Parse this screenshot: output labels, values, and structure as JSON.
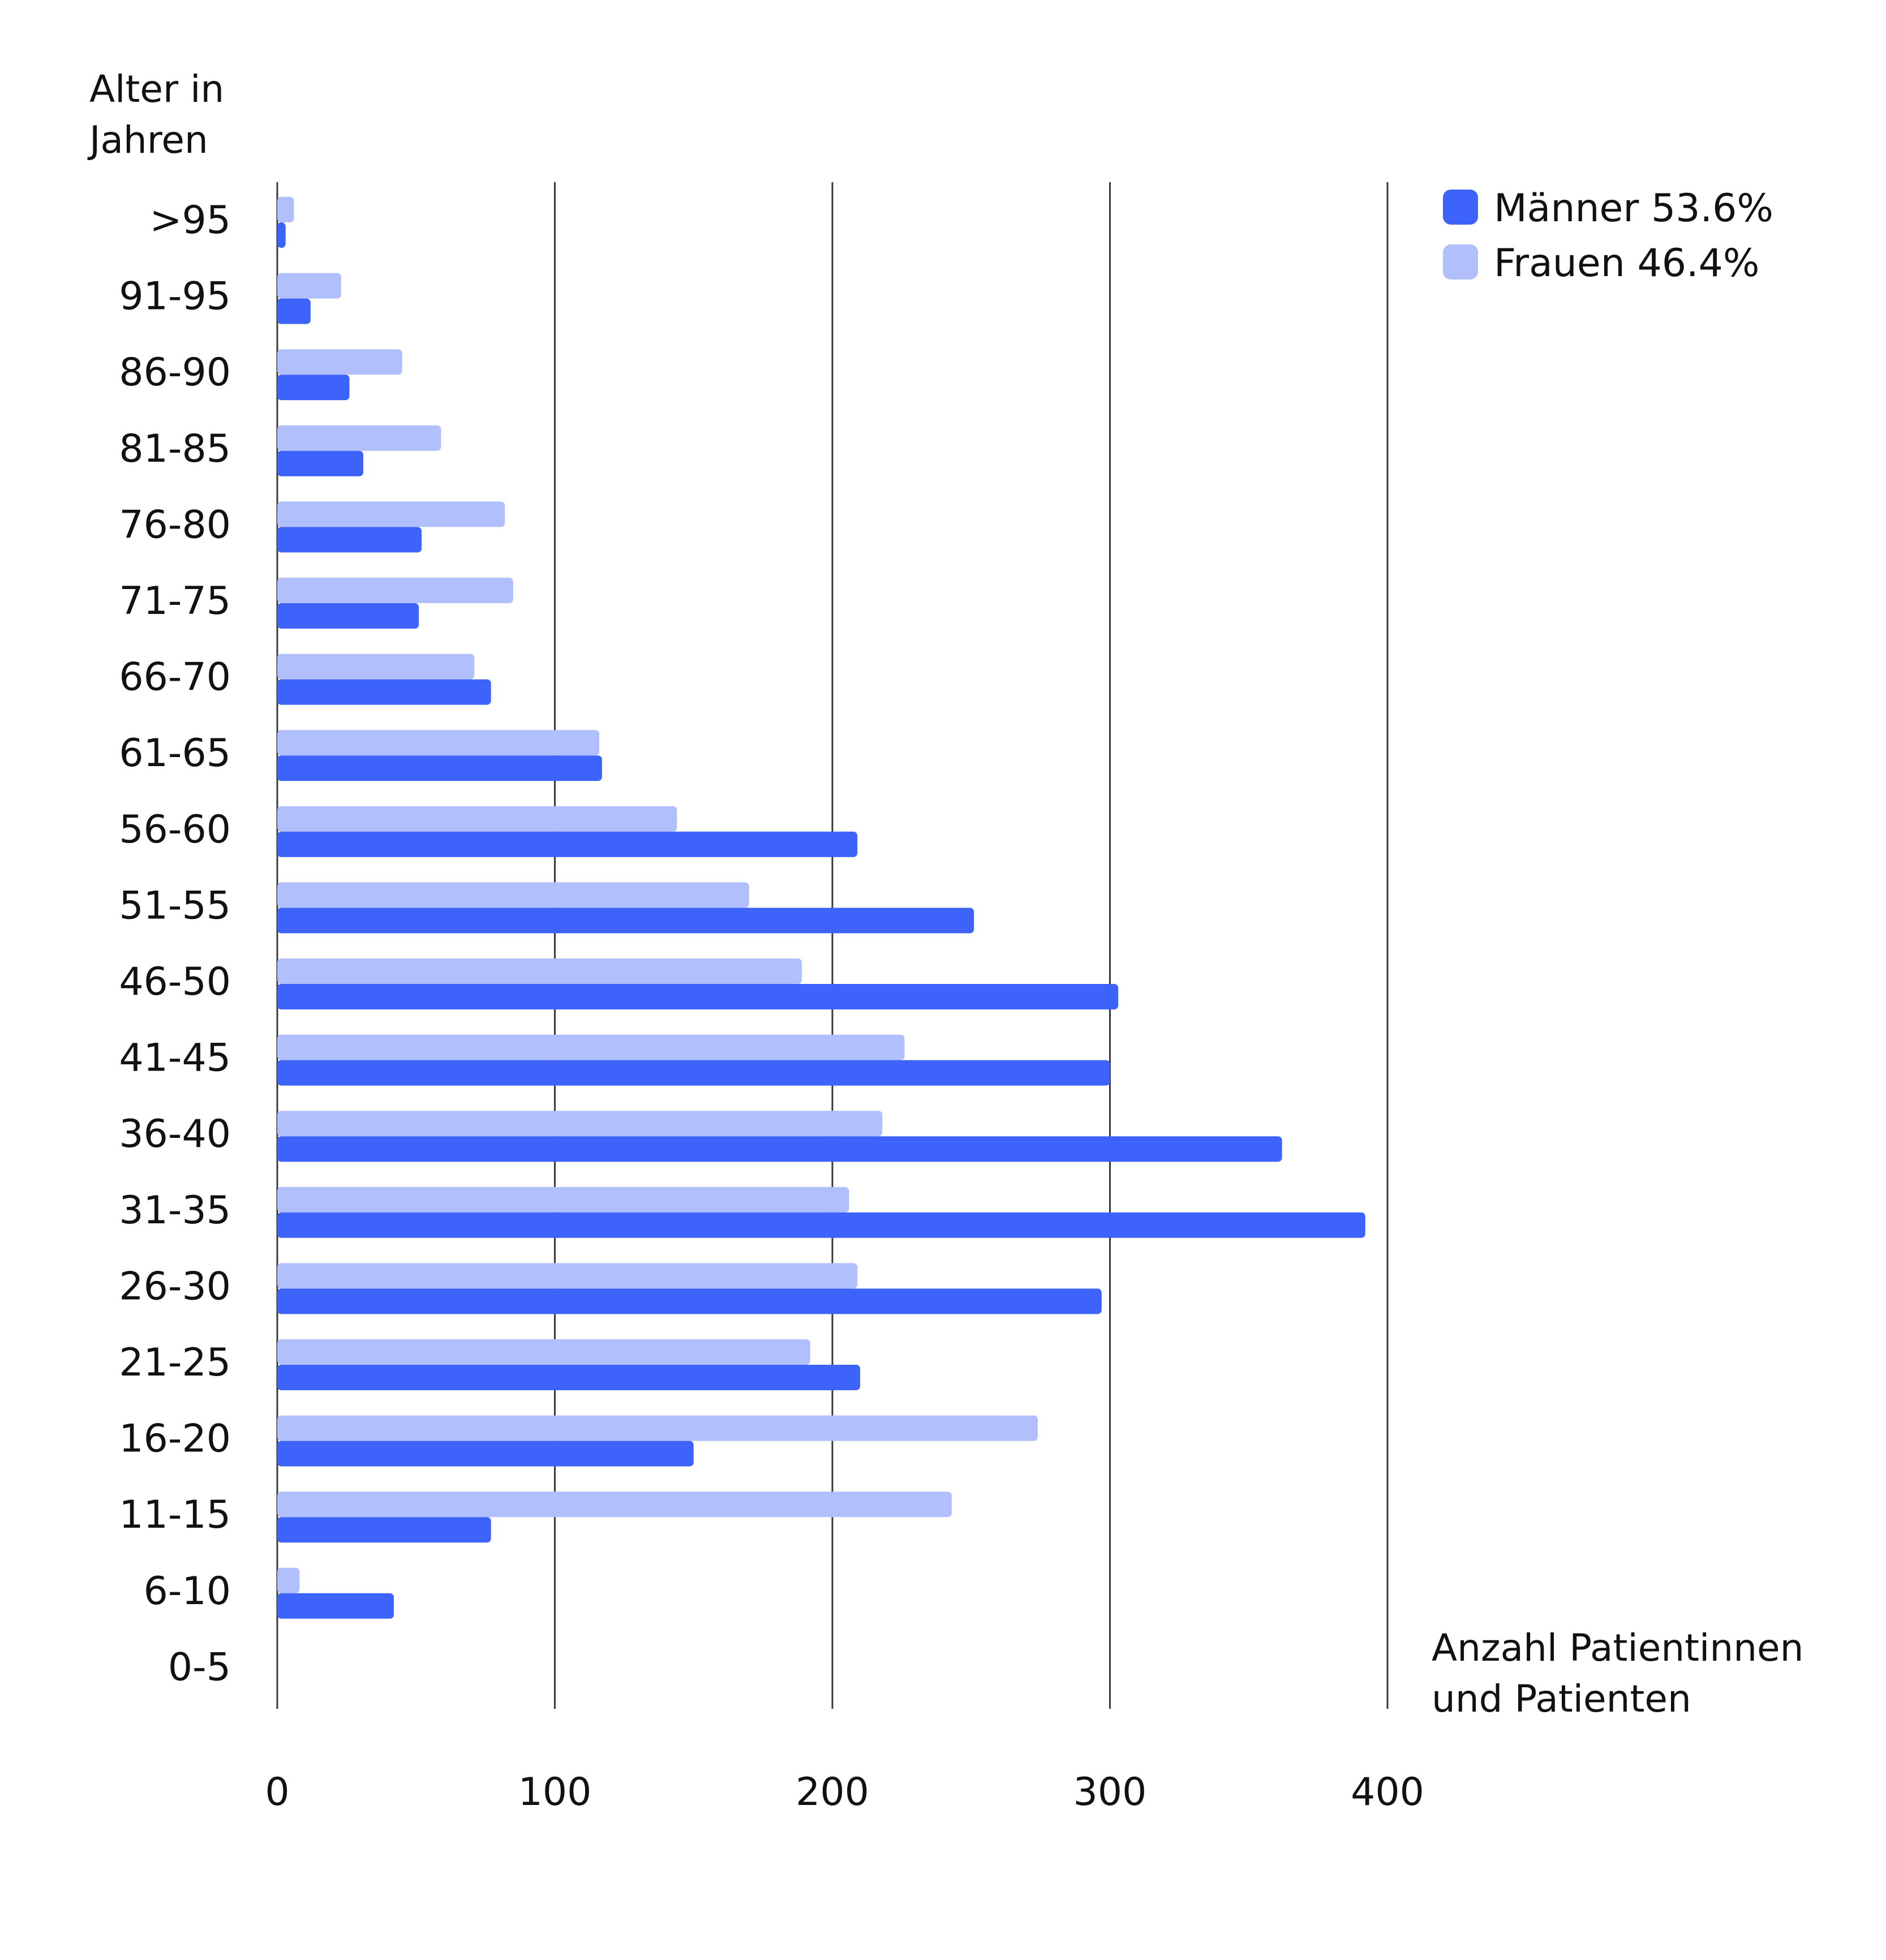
{
  "chart_data": {
    "type": "bar",
    "orientation": "horizontal",
    "ylabel": "Alter in Jahren",
    "xlabel": "Anzahl Patientinnen und Patienten",
    "categories": [
      ">95",
      "91-95",
      "86-90",
      "81-85",
      "76-80",
      "71-75",
      "66-70",
      "61-65",
      "56-60",
      "51-55",
      "46-50",
      "41-45",
      "36-40",
      "31-35",
      "26-30",
      "21-25",
      "16-20",
      "11-15",
      "6-10",
      "0-5"
    ],
    "series": [
      {
        "name": "Frauen 46.4%",
        "color": "#B1BFFC",
        "values": [
          6,
          23,
          45,
          59,
          82,
          85,
          71,
          116,
          144,
          170,
          189,
          226,
          218,
          206,
          209,
          192,
          274,
          243,
          8,
          0
        ]
      },
      {
        "name": "Männer 53.6%",
        "color": "#3D63FB",
        "values": [
          3,
          12,
          26,
          31,
          52,
          51,
          77,
          117,
          209,
          251,
          303,
          300,
          362,
          392,
          297,
          210,
          150,
          77,
          42,
          0
        ]
      }
    ],
    "xlim": [
      0,
      400
    ],
    "xticks": [
      0,
      100,
      200,
      300,
      400
    ],
    "xtick_labels": [
      "0",
      "100",
      "200",
      "300",
      "400"
    ],
    "grid": true,
    "legend_position": "top-right"
  }
}
